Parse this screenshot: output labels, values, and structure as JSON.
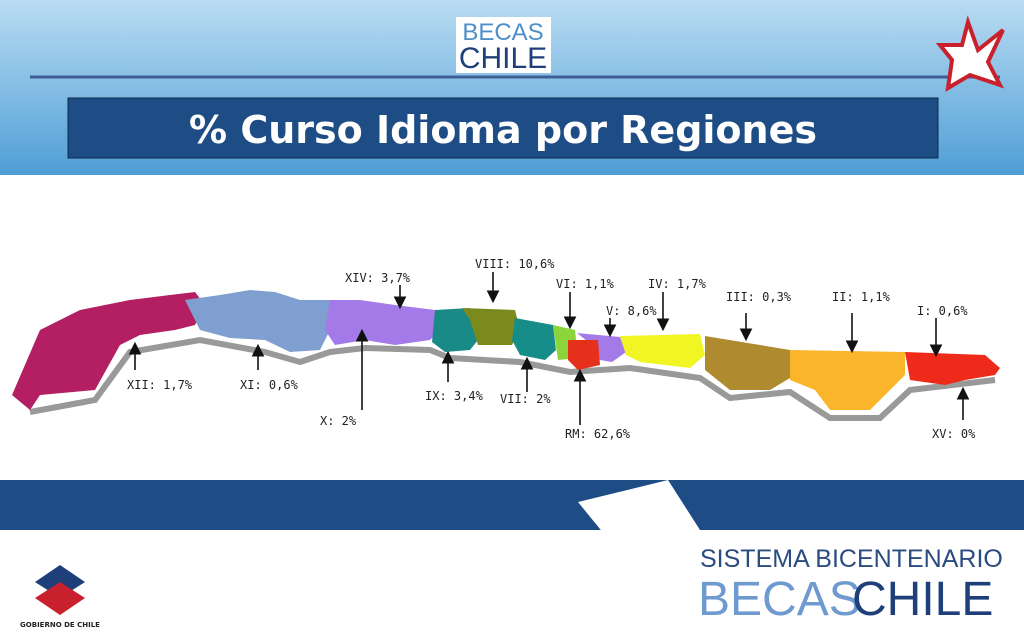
{
  "header": {
    "logo": {
      "line1": "BECAS",
      "line2": "CHILE"
    },
    "title": "% Curso Idioma por Regiones"
  },
  "map": {
    "regions": [
      "XII: 1,7%",
      "XI: 0,6%",
      "X: 2%",
      "XIV: 3,7%",
      "IX: 3,4%",
      "VIII: 10,6%",
      "VII: 2%",
      "VI: 1,1%",
      "V: 8,6%",
      "RM: 62,6%",
      "IV: 1,7%",
      "III: 0,3%",
      "II: 1,1%",
      "I: 0,6%",
      "XV: 0%"
    ]
  },
  "footer": {
    "system": "SISTEMA BICENTENARIO",
    "brand_1": "BECAS",
    "brand_2": "CHILE",
    "government": "GOBIERNO DE CHILE"
  }
}
